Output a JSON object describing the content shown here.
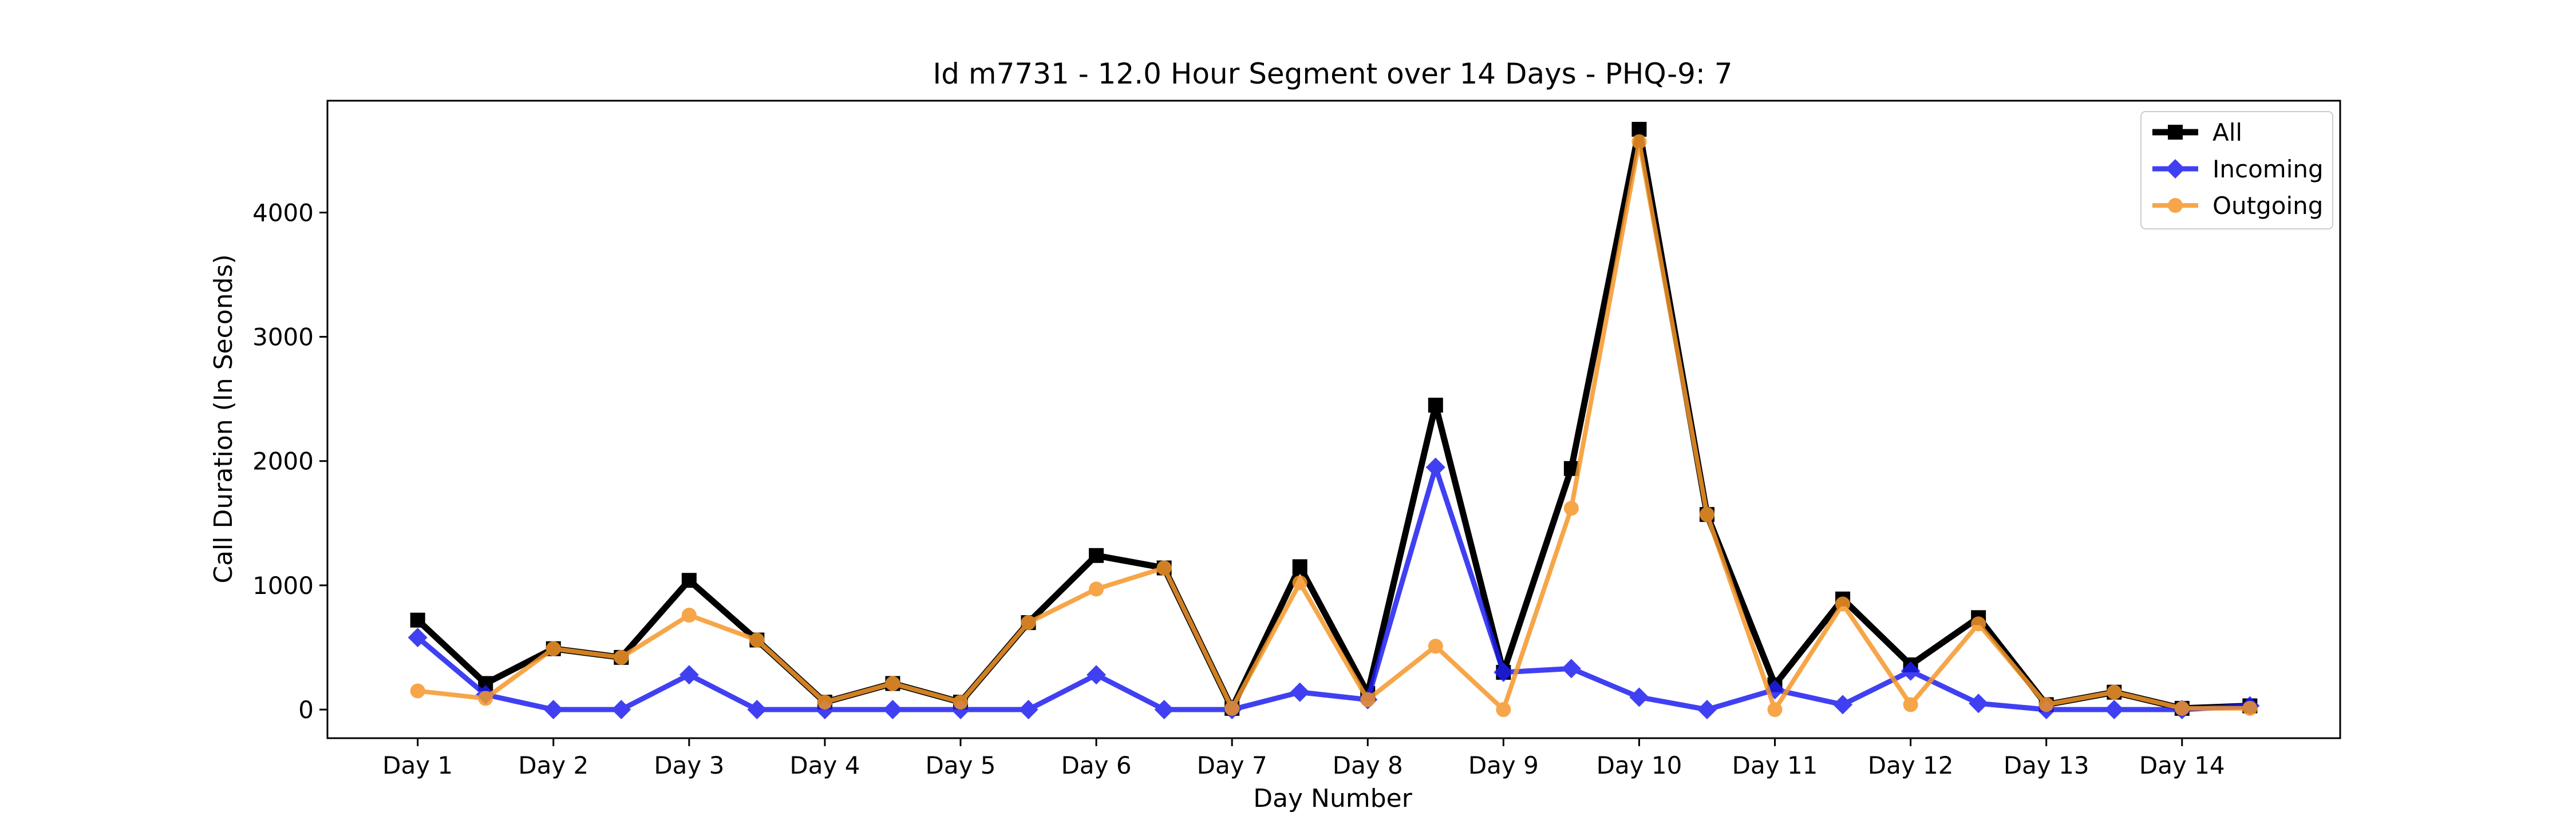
{
  "chart_data": {
    "type": "line",
    "title": "Id m7731 - 12.0 Hour Segment over 14 Days - PHQ-9: 7",
    "xlabel": "Day Number",
    "ylabel": "Call Duration (In Seconds)",
    "x": [
      0,
      1,
      2,
      3,
      4,
      5,
      6,
      7,
      8,
      9,
      10,
      11,
      12,
      13,
      14,
      15,
      16,
      17,
      18,
      19,
      20,
      21,
      22,
      23,
      24,
      25,
      26,
      27
    ],
    "xticks": [
      0,
      2,
      4,
      6,
      8,
      10,
      12,
      14,
      16,
      18,
      20,
      22,
      24,
      26
    ],
    "xtick_labels": [
      "Day 1",
      "Day 2",
      "Day 3",
      "Day 4",
      "Day 5",
      "Day 6",
      "Day 7",
      "Day 8",
      "Day 9",
      "Day 10",
      "Day 11",
      "Day 12",
      "Day 13",
      "Day 14"
    ],
    "xlim": [
      -1.33,
      28.33
    ],
    "yticks": [
      0,
      1000,
      2000,
      3000,
      4000
    ],
    "ytick_labels": [
      "0",
      "1000",
      "2000",
      "3000",
      "4000"
    ],
    "ylim": [
      -230,
      4900
    ],
    "grid": false,
    "legend_position": "upper right",
    "series": [
      {
        "name": "All",
        "color": "#000000",
        "marker": "square",
        "values": [
          720,
          210,
          490,
          420,
          1040,
          560,
          60,
          210,
          60,
          700,
          1240,
          1140,
          10,
          1150,
          130,
          2450,
          300,
          1940,
          4670,
          1570,
          200,
          890,
          360,
          740,
          40,
          140,
          10,
          30
        ]
      },
      {
        "name": "Incoming",
        "color": "#1f1ff0",
        "marker": "diamond",
        "values": [
          580,
          120,
          0,
          0,
          280,
          0,
          0,
          0,
          0,
          0,
          280,
          0,
          0,
          140,
          80,
          1950,
          300,
          330,
          100,
          0,
          160,
          40,
          310,
          50,
          0,
          0,
          0,
          30
        ]
      },
      {
        "name": "Outgoing",
        "color": "#f5972a",
        "marker": "circle",
        "values": [
          150,
          90,
          490,
          420,
          760,
          560,
          60,
          210,
          60,
          700,
          970,
          1140,
          10,
          1020,
          80,
          510,
          0,
          1620,
          4570,
          1570,
          0,
          850,
          40,
          690,
          40,
          140,
          10,
          10
        ]
      }
    ]
  }
}
